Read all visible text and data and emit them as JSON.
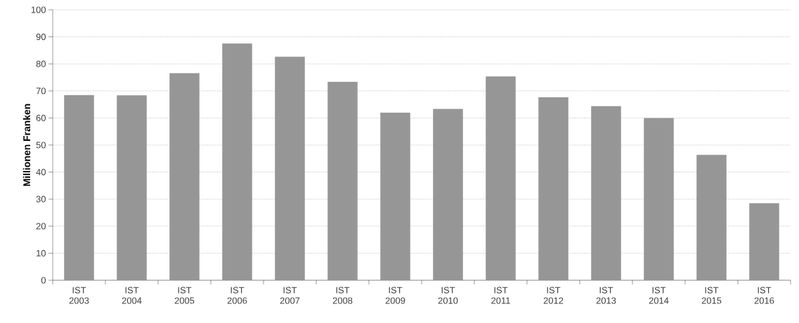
{
  "chart_data": {
    "type": "bar",
    "ylabel": "Millionen Franken",
    "categories": [
      "IST 2003",
      "IST 2004",
      "IST 2005",
      "IST 2006",
      "IST 2007",
      "IST 2008",
      "IST 2009",
      "IST 2010",
      "IST 2011",
      "IST 2012",
      "IST 2013",
      "IST 2014",
      "IST 2015",
      "IST 2016"
    ],
    "values": [
      68.4,
      68.3,
      76.5,
      87.5,
      82.6,
      73.3,
      61.9,
      63.3,
      75.3,
      67.6,
      64.3,
      59.9,
      46.3,
      28.4
    ],
    "color": "#969696",
    "ylim": [
      0,
      100
    ],
    "yticks": [
      0,
      10,
      20,
      30,
      40,
      50,
      60,
      70,
      80,
      90,
      100
    ],
    "grid": "y"
  }
}
